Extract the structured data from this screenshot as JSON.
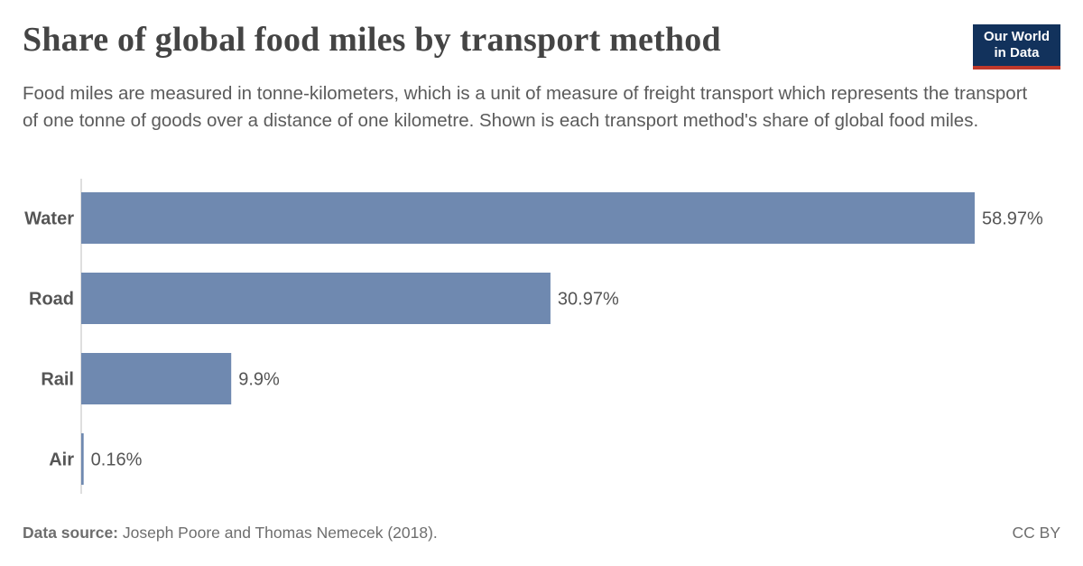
{
  "header": {
    "title": "Share of global food miles by transport method",
    "subtitle": "Food miles are measured in tonne-kilometers, which is a unit of measure of freight transport which represents the transport of one tonne of goods over a distance of one kilometre. Shown is each transport method's share of global food miles.",
    "logo_line1": "Our World",
    "logo_line2": "in Data"
  },
  "footer": {
    "source_label": "Data source:",
    "source_text": "Joseph Poore and Thomas Nemecek (2018).",
    "license": "CC BY"
  },
  "colors": {
    "bar": "#6f89b0",
    "axis": "#bdbdbd",
    "label": "#555555",
    "value": "#555555"
  },
  "chart_data": {
    "type": "bar",
    "orientation": "horizontal",
    "categories": [
      "Water",
      "Road",
      "Rail",
      "Air"
    ],
    "values": [
      58.97,
      30.97,
      9.9,
      0.16
    ],
    "value_labels": [
      "58.97%",
      "30.97%",
      "9.9%",
      "0.16%"
    ],
    "unit": "%",
    "xlim": [
      0,
      58.97
    ],
    "grid": false,
    "legend": "none"
  }
}
